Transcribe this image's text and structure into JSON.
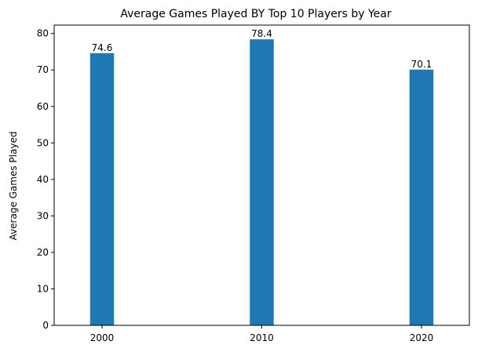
{
  "chart_data": {
    "type": "bar",
    "title": "Average Games Played BY Top 10 Players by Year",
    "xlabel": "",
    "ylabel": "Average Games Played",
    "categories": [
      "2000",
      "2010",
      "2020"
    ],
    "values": [
      74.6,
      78.4,
      70.1
    ],
    "value_labels": [
      "74.6",
      "78.4",
      "70.1"
    ],
    "x_ticks": [
      "2000",
      "2010",
      "2020"
    ],
    "y_ticks": [
      0,
      10,
      20,
      30,
      40,
      50,
      60,
      70,
      80
    ],
    "ylim": [
      0,
      82.3
    ],
    "xlim": [
      1997,
      2023
    ],
    "bar_width_years": 1.5,
    "grid": false,
    "bar_color": "#1f77b4"
  }
}
